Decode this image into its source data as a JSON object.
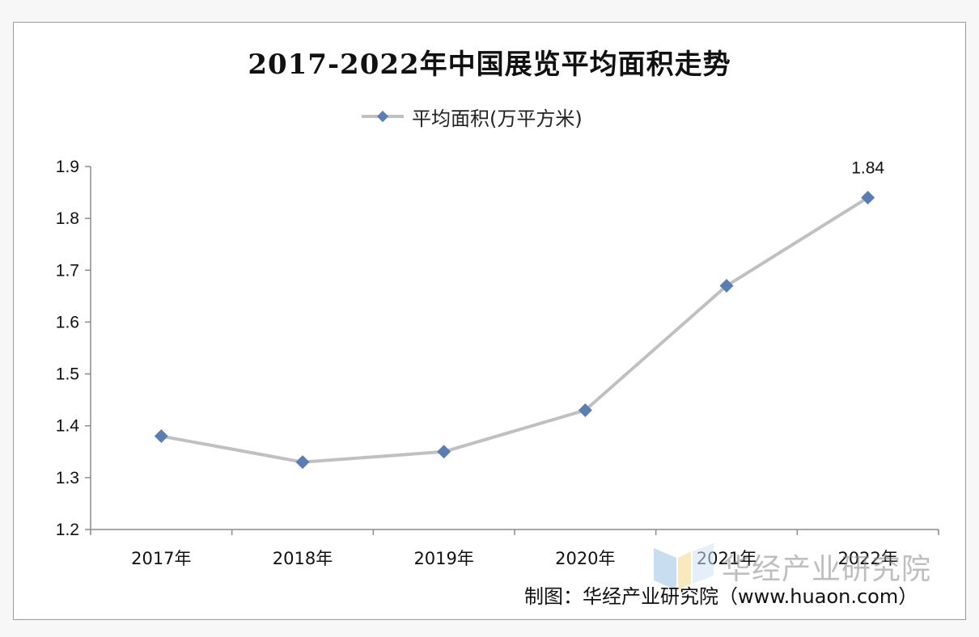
{
  "chart_data": {
    "type": "line",
    "title": "2017-2022年中国展览平均面积走势",
    "categories": [
      "2017年",
      "2018年",
      "2019年",
      "2020年",
      "2021年",
      "2022年"
    ],
    "series": [
      {
        "name": "平均面积(万平方米)",
        "values": [
          1.38,
          1.33,
          1.35,
          1.43,
          1.67,
          1.84
        ],
        "color": "#c0c0c0",
        "marker_color": "#5b7db1"
      }
    ],
    "data_labels": [
      {
        "category": "2022年",
        "text": "1.84"
      }
    ],
    "ylim": [
      1.2,
      1.9
    ],
    "yticks": [
      "1.2",
      "1.3",
      "1.4",
      "1.5",
      "1.6",
      "1.7",
      "1.8",
      "1.9"
    ],
    "grid": false,
    "legend_position": "top"
  },
  "watermark": {
    "text": "华经产业研究院"
  },
  "source_text": "制图：华经产业研究院（www.huaon.com）"
}
